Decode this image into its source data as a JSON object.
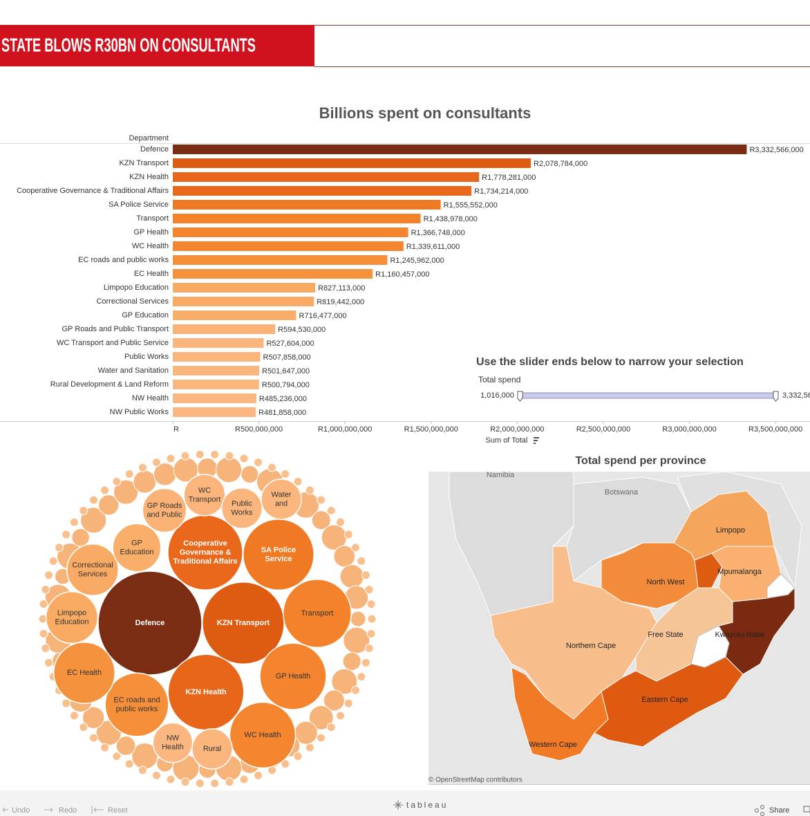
{
  "header": {
    "title": "STATE BLOWS R30BN ON CONSULTANTS"
  },
  "chart_data": [
    {
      "type": "bar",
      "title": "Billions spent on consultants",
      "category_label": "Department",
      "x_label": "Sum of Total",
      "categories": [
        "Defence",
        "KZN Transport",
        "KZN Health",
        "Cooperative Governance & Traditional Affairs",
        "SA Police Service",
        "Transport",
        "GP Health",
        "WC Health",
        "EC roads and public works",
        "EC Health",
        "Limpopo Education",
        "Correctional Services",
        "GP Education",
        "GP Roads and Public Transport",
        "WC Transport and Public Service",
        "Public Works",
        "Water and Sanitation",
        "Rural Development & Land Reform",
        "NW Health",
        "NW Public Works"
      ],
      "values": [
        3332566000,
        2078784000,
        1778281000,
        1734214000,
        1555552000,
        1438978000,
        1366748000,
        1339611000,
        1245962000,
        1160457000,
        827113000,
        819442000,
        716477000,
        594530000,
        527604000,
        507858000,
        501647000,
        500794000,
        485236000,
        481858000
      ],
      "value_labels": [
        "R3,332,566,000",
        "R2,078,784,000",
        "R1,778,281,000",
        "R1,734,214,000",
        "R1,555,552,000",
        "R1,438,978,000",
        "R1,366,748,000",
        "R1,339,611,000",
        "R1,245,962,000",
        "R1,160,457,000",
        "R827,113,000",
        "R819,442,000",
        "R716,477,000",
        "R594,530,000",
        "R527,604,000",
        "R507,858,000",
        "R501,647,000",
        "R500,794,000",
        "R485,236,000",
        "R481,858,000"
      ],
      "colors": [
        "#7b2d14",
        "#de5b12",
        "#e8661a",
        "#e9681c",
        "#f07a24",
        "#f3822b",
        "#f4852e",
        "#f48630",
        "#f58f3a",
        "#f5923e",
        "#f9aa63",
        "#f9ab65",
        "#f9ae6a",
        "#fab276",
        "#fbb57c",
        "#fbb67e",
        "#fbb67e",
        "#fbb67e",
        "#fbb77f",
        "#fbb77f"
      ],
      "xlim": [
        0,
        3700000000
      ],
      "xticks": [
        {
          "value": 0,
          "label": "R"
        },
        {
          "value": 500000000,
          "label": "R500,000,000"
        },
        {
          "value": 1000000000,
          "label": "R1,000,000,000"
        },
        {
          "value": 1500000000,
          "label": "R1,500,000,000"
        },
        {
          "value": 2000000000,
          "label": "R2,000,000,000"
        },
        {
          "value": 2500000000,
          "label": "R2,500,000,000"
        },
        {
          "value": 3000000000,
          "label": "R3,000,000,000"
        },
        {
          "value": 3500000000,
          "label": "R3,500,000,000"
        }
      ]
    },
    {
      "type": "packed-bubble",
      "categories": [
        "Defence",
        "KZN Transport",
        "KZN Health",
        "Cooperative\nGovernance &\nTraditional Affairs",
        "SA Police\nService",
        "Transport",
        "GP Health",
        "WC Health",
        "EC roads and\npublic works",
        "EC Health",
        "Limpopo\nEducation",
        "Correctional\nServices",
        "GP\nEducation",
        "GP Roads\nand Public",
        "WC\nTransport",
        "Public\nWorks",
        "Water\nand",
        "Rural",
        "NW\nHealth"
      ],
      "values": [
        3332566000,
        2078784000,
        1778281000,
        1734214000,
        1555552000,
        1438978000,
        1366748000,
        1339611000,
        1245962000,
        1160457000,
        827113000,
        819442000,
        716477000,
        594530000,
        527604000,
        507858000,
        501647000,
        500794000,
        485236000
      ],
      "colors": [
        "#7b2d14",
        "#de5b12",
        "#e8661a",
        "#e9681c",
        "#f07a24",
        "#f3822b",
        "#f4852e",
        "#f48630",
        "#f58f3a",
        "#f5923e",
        "#f9aa63",
        "#f9ab65",
        "#f9ae6a",
        "#fab276",
        "#fbb57c",
        "#fbb67e",
        "#fbb67e",
        "#fbb67e",
        "#fbb77f"
      ],
      "light_labels": [
        "Defence",
        "KZN Transport",
        "KZN Health",
        "Cooperative\nGovernance &\nTraditional Affairs",
        "SA Police\nService"
      ]
    }
  ],
  "slider": {
    "title": "Use the slider ends below to narrow your selection",
    "label": "Total spend",
    "min_label": "1,016,000",
    "max_label": "3,332,56"
  },
  "map": {
    "title": "Total spend per province",
    "countries": [
      "Namibia",
      "Botswana"
    ],
    "regions": [
      {
        "name": "Northern Cape",
        "color": "#f7bd8a"
      },
      {
        "name": "Western Cape",
        "color": "#f07a26"
      },
      {
        "name": "Eastern Cape",
        "color": "#de5a10"
      },
      {
        "name": "Free State",
        "color": "#f6c597"
      },
      {
        "name": "Kwazulu-Natal",
        "color": "#7a2a10"
      },
      {
        "name": "North West",
        "color": "#f28c3a"
      },
      {
        "name": "Mpumalanga",
        "color": "#f9b071"
      },
      {
        "name": "Limpopo",
        "color": "#f6a65c"
      }
    ],
    "attribution": "© OpenStreetMap contributors"
  },
  "toolbar": {
    "undo": "Undo",
    "redo": "Redo",
    "reset": "Reset",
    "logo": "tableau",
    "share": "Share"
  }
}
